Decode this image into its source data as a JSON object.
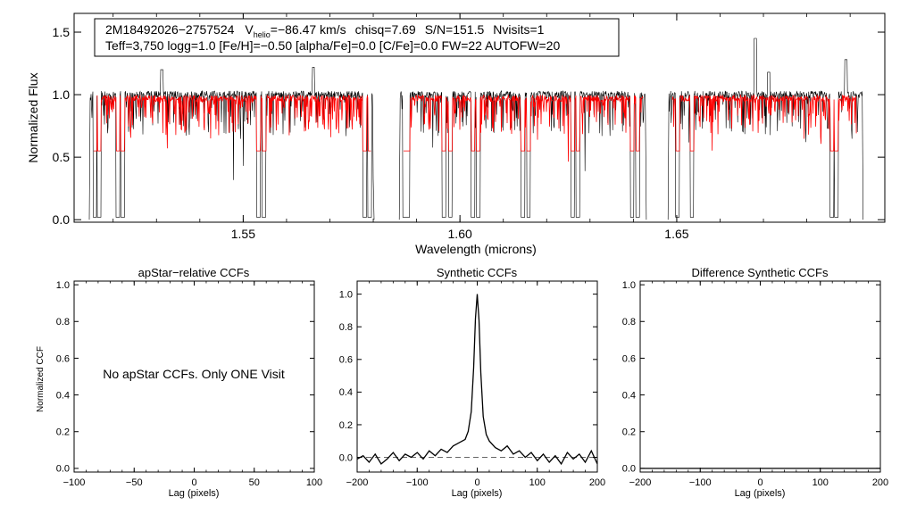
{
  "colors": {
    "observed": "#000000",
    "model": "#ff0000",
    "axis": "#000000",
    "zero_line": "#666666"
  },
  "chart_data": [
    {
      "type": "line",
      "id": "spectrum",
      "title": "",
      "xlabel": "Wavelength (microns)",
      "ylabel": "Normalized Flux",
      "xlim": [
        1.511,
        1.698
      ],
      "ylim": [
        -0.02,
        1.65
      ],
      "xticks": [
        1.55,
        1.6,
        1.65
      ],
      "xtick_labels": [
        "1.55",
        "1.60",
        "1.65"
      ],
      "yticks": [
        0.0,
        0.5,
        1.0,
        1.5
      ],
      "ytick_labels": [
        "0.0",
        "0.5",
        "1.0",
        "1.5"
      ],
      "chips": [
        [
          1.5145,
          1.5802
        ],
        [
          1.586,
          1.643
        ],
        [
          1.648,
          1.693
        ]
      ],
      "model_segments": [
        [
          1.5155,
          1.5795
        ],
        [
          1.587,
          1.6422
        ],
        [
          1.649,
          1.6915
        ]
      ],
      "deep_lines": [
        1.5158,
        1.5168,
        1.5211,
        1.5222,
        1.5535,
        1.5548,
        1.578,
        1.5792,
        1.5872,
        1.588,
        1.5963,
        1.5978,
        1.603,
        1.6042,
        1.6145,
        1.6158,
        1.626,
        1.6272,
        1.6397,
        1.641,
        1.6502,
        1.6535,
        1.6858,
        1.6868
      ],
      "emission_spikes": [
        [
          1.5312,
          0.2
        ],
        [
          1.5662,
          0.22
        ],
        [
          1.6681,
          0.45
        ],
        [
          1.6712,
          0.18
        ],
        [
          1.689,
          0.28
        ]
      ],
      "series": [
        {
          "name": "observed",
          "color": "#000000",
          "continuum": 1.0
        },
        {
          "name": "model",
          "color": "#ff0000",
          "continuum": 0.97
        }
      ],
      "legend": {
        "star_id": "2M18492026−2757524",
        "v_label": "V",
        "v_sub": "helio",
        "v_value": "=−86.47 km/s",
        "chisq": "chisq=7.69",
        "snr": "S/N=151.5",
        "nvisits": "Nvisits=1",
        "line2": "Teff=3,750 logg=1.0 [Fe/H]=−0.50 [alpha/Fe]=0.0 [C/Fe]=0.0 FW=22 AUTOFW=20"
      }
    },
    {
      "type": "line",
      "id": "apstar_ccf",
      "title": "apStar−relative CCFs",
      "xlabel": "Lag (pixels)",
      "ylabel": "Normalized CCF",
      "xlim": [
        -100,
        100
      ],
      "ylim": [
        -0.02,
        1.02
      ],
      "xticks": [
        -100,
        -50,
        0,
        50,
        100
      ],
      "xtick_labels": [
        "−100",
        "−50",
        "0",
        "50",
        "100"
      ],
      "yticks": [
        0.0,
        0.2,
        0.4,
        0.6,
        0.8,
        1.0
      ],
      "ytick_labels": [
        "0.0",
        "0.2",
        "0.4",
        "0.6",
        "0.8",
        "1.0"
      ],
      "annotation": "No apStar CCFs.  Only ONE Visit",
      "series": []
    },
    {
      "type": "line",
      "id": "synthetic_ccf",
      "title": "Synthetic CCFs",
      "xlabel": "Lag (pixels)",
      "ylabel": "",
      "xlim": [
        -200,
        200
      ],
      "ylim": [
        -0.09,
        1.08
      ],
      "xticks": [
        -200,
        -100,
        0,
        100,
        200
      ],
      "xtick_labels": [
        "−200",
        "−100",
        "0",
        "100",
        "200"
      ],
      "yticks": [
        0.0,
        0.2,
        0.4,
        0.6,
        0.8,
        1.0
      ],
      "ytick_labels": [
        "0.0",
        "0.2",
        "0.4",
        "0.6",
        "0.8",
        "1.0"
      ],
      "zero_line": 0.0,
      "series": [
        {
          "name": "CCF",
          "color": "#000000",
          "x": [
            -200,
            -190,
            -180,
            -170,
            -160,
            -150,
            -140,
            -130,
            -120,
            -110,
            -100,
            -90,
            -80,
            -70,
            -60,
            -50,
            -40,
            -30,
            -20,
            -15,
            -10,
            -6,
            -3,
            0,
            3,
            6,
            10,
            15,
            20,
            30,
            40,
            50,
            60,
            70,
            80,
            90,
            100,
            110,
            120,
            130,
            140,
            150,
            160,
            170,
            180,
            190,
            200
          ],
          "y": [
            -0.01,
            0.01,
            -0.03,
            0.02,
            -0.04,
            -0.01,
            0.03,
            -0.02,
            0.02,
            0.0,
            0.03,
            -0.01,
            0.04,
            0.01,
            0.05,
            0.03,
            0.07,
            0.09,
            0.11,
            0.16,
            0.28,
            0.55,
            0.85,
            1.0,
            0.84,
            0.52,
            0.25,
            0.14,
            0.1,
            0.06,
            0.04,
            0.07,
            0.02,
            0.04,
            0.0,
            0.03,
            -0.02,
            0.02,
            -0.03,
            0.01,
            -0.04,
            0.03,
            -0.01,
            0.02,
            -0.03,
            0.04,
            -0.04
          ]
        }
      ]
    },
    {
      "type": "line",
      "id": "difference_ccf",
      "title": "Difference Synthetic CCFs",
      "xlabel": "Lag (pixels)",
      "ylabel": "",
      "xlim": [
        -200,
        200
      ],
      "ylim": [
        -0.02,
        1.02
      ],
      "xticks": [
        -200,
        -100,
        0,
        100,
        200
      ],
      "xtick_labels": [
        "−200",
        "−100",
        "0",
        "100",
        "200"
      ],
      "yticks": [
        0.0,
        0.2,
        0.4,
        0.6,
        0.8,
        1.0
      ],
      "ytick_labels": [
        "0.0",
        "0.2",
        "0.4",
        "0.6",
        "0.8",
        "1.0"
      ],
      "series": [
        {
          "name": "difference",
          "color": "#000000",
          "x": [
            -200,
            200
          ],
          "y": [
            0.0,
            0.0
          ]
        }
      ]
    }
  ]
}
